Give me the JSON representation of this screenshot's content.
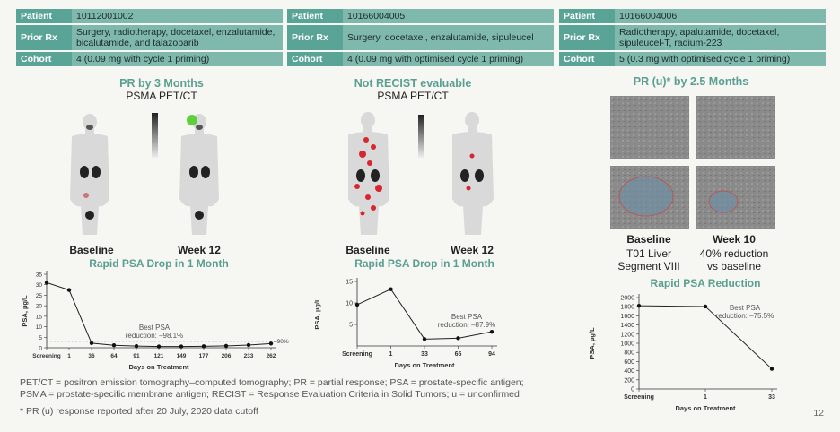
{
  "patients": [
    {
      "rows": [
        {
          "key": "Patient",
          "val": "10112001002"
        },
        {
          "key": "Prior Rx",
          "val": "Surgery, radiotherapy, docetaxel, enzalutamide, bicalutamide, and talazoparib"
        },
        {
          "key": "Cohort",
          "val": "4 (0.09 mg with cycle 1 priming)"
        }
      ]
    },
    {
      "rows": [
        {
          "key": "Patient",
          "val": "10166004005"
        },
        {
          "key": "Prior Rx",
          "val": "Surgery, docetaxel, enzalutamide, sipuleucel"
        },
        {
          "key": "Cohort",
          "val": "4 (0.09 mg with optimised cycle 1 priming)"
        }
      ]
    },
    {
      "rows": [
        {
          "key": "Patient",
          "val": "10166004006"
        },
        {
          "key": "Prior Rx",
          "val": "Radiotherapy, apalutamide, docetaxel, sipuleucel-T, radium-223"
        },
        {
          "key": "Cohort",
          "val": "5 (0.3 mg with optimised cycle 1 priming)"
        }
      ]
    }
  ],
  "panel1": {
    "response": "PR by 3 Months",
    "modality": "PSMA PET/CT",
    "label_a": "Baseline",
    "label_b": "Week 12"
  },
  "panel2": {
    "response": "Not RECIST evaluable",
    "modality": "PSMA PET/CT",
    "label_a": "Baseline",
    "label_b": "Week 12"
  },
  "panel3": {
    "response": "PR (u)* by 2.5 Months",
    "label_a": "Baseline",
    "label_a_sub": [
      "T01 Liver",
      "Segment VIII"
    ],
    "label_b": "Week 10",
    "label_b_sub": [
      "40% reduction",
      "vs baseline"
    ]
  },
  "chart_data": [
    {
      "type": "line",
      "title": "Rapid PSA Drop in 1 Month",
      "xlabel": "Days on  Treatment",
      "ylabel": "PSA, µg/L",
      "categories": [
        "Screening",
        "1",
        "36",
        "64",
        "91",
        "121",
        "149",
        "177",
        "206",
        "233",
        "262"
      ],
      "values": [
        31,
        27.5,
        2.2,
        1.2,
        0.8,
        0.6,
        0.6,
        0.7,
        0.9,
        1.3,
        2
      ],
      "yticks": [
        0,
        5,
        10,
        15,
        20,
        25,
        30,
        35
      ],
      "ylim": [
        0,
        35
      ],
      "annotation": [
        "Best PSA",
        "reduction: –98.1%"
      ],
      "ref_line": {
        "value": 3.1,
        "label": "–90%"
      }
    },
    {
      "type": "line",
      "title": "Rapid PSA Drop in 1 Month",
      "xlabel": "Days on  Treatment",
      "ylabel": "PSA, µg/L",
      "categories": [
        "Screening",
        "1",
        "33",
        "65",
        "94"
      ],
      "values": [
        9.6,
        13.2,
        1.6,
        1.8,
        3.3
      ],
      "yticks": [
        5,
        10,
        15
      ],
      "ylim": [
        0,
        15
      ],
      "annotation": [
        "Best PSA",
        "reduction: –87.9%"
      ]
    },
    {
      "type": "line",
      "title": "Rapid PSA Reduction",
      "xlabel": "Days on  Treatment",
      "ylabel": "PSA, µg/L",
      "categories": [
        "Screening",
        "1",
        "33"
      ],
      "values": [
        1820,
        1805,
        440
      ],
      "yticks": [
        0,
        200,
        400,
        600,
        800,
        1000,
        1200,
        1400,
        1600,
        1800,
        2000
      ],
      "ylim": [
        0,
        2000
      ],
      "annotation": [
        "Best PSA",
        "reduction: –75.5%"
      ]
    }
  ],
  "footnotes": {
    "abbrev1": "PET/CT = positron emission tomography–computed tomography; PR = partial response; PSA = prostate-specific antigen;",
    "abbrev2": "PSMA = prostate-specific membrane antigen; RECIST = Response Evaluation Criteria in Solid Tumors; u = unconfirmed",
    "note": "* PR (u) response reported after 20 July, 2020 data cutoff"
  },
  "page_number": "12",
  "colors": {
    "header_key": "#5aa497",
    "header_val": "#7fb8ad",
    "accent": "#5a9f92"
  }
}
